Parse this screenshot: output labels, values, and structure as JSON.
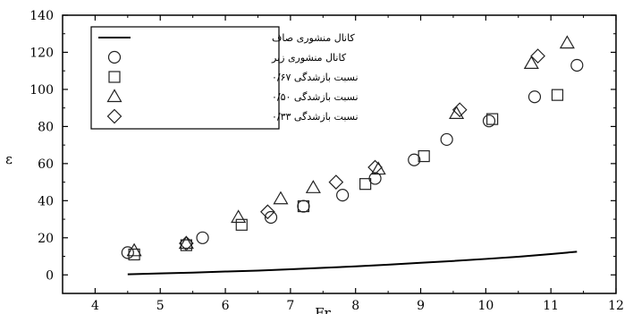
{
  "chart_data": {
    "type": "scatter",
    "xlabel": "Fr",
    "ylabel": "ε",
    "xlim": [
      3.5,
      12
    ],
    "ylim": [
      -10,
      140
    ],
    "xticks": [
      4,
      5,
      6,
      7,
      8,
      9,
      10,
      11,
      12
    ],
    "yticks": [
      0,
      20,
      40,
      60,
      80,
      100,
      120,
      140
    ],
    "legend_position": "top-left",
    "series": [
      {
        "name": "کانال منشوری صاف",
        "marker": "line",
        "x": [
          4.5,
          5,
          5.5,
          6,
          6.5,
          7,
          7.5,
          8,
          8.5,
          9,
          9.5,
          10,
          10.5,
          11,
          11.4
        ],
        "y": [
          0.3,
          0.8,
          1.2,
          1.8,
          2.3,
          3.0,
          3.8,
          4.6,
          5.5,
          6.5,
          7.5,
          8.6,
          9.8,
          11.2,
          12.5
        ]
      },
      {
        "name": "کانال منشوری زبر",
        "marker": "circle",
        "x": [
          4.5,
          5.65,
          6.7,
          7.2,
          7.8,
          8.3,
          8.9,
          9.4,
          10.05,
          10.75,
          11.4
        ],
        "y": [
          12,
          20,
          31,
          37,
          43,
          52,
          62,
          73,
          83,
          96,
          113
        ]
      },
      {
        "name": "نسبت بازشدگی ۰/۶۷",
        "marker": "square",
        "x": [
          4.6,
          5.4,
          6.25,
          7.2,
          8.15,
          9.05,
          10.1,
          11.1
        ],
        "y": [
          11,
          16,
          27,
          37,
          49,
          64,
          84,
          97
        ]
      },
      {
        "name": "نسبت بازشدگی ۰/۵۰",
        "marker": "triangle",
        "x": [
          4.6,
          5.4,
          6.2,
          6.85,
          7.35,
          8.35,
          9.55,
          10.7,
          11.25
        ],
        "y": [
          13,
          17,
          31,
          41,
          47,
          57,
          87,
          114,
          125
        ]
      },
      {
        "name": "نسبت بازشدگی ۰/۳۳",
        "marker": "diamond",
        "x": [
          5.4,
          6.65,
          7.7,
          8.3,
          9.6,
          10.8
        ],
        "y": [
          17,
          34,
          50,
          58,
          89,
          118
        ]
      }
    ]
  }
}
